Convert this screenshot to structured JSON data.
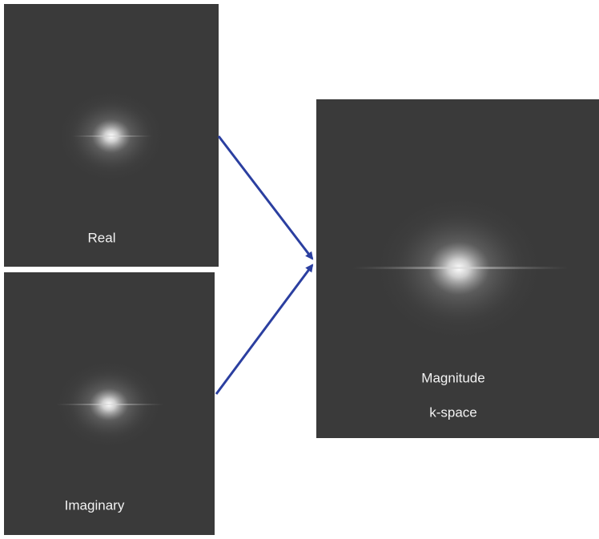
{
  "panels": [
    {
      "label": "Real"
    },
    {
      "label": "Imaginary"
    },
    {
      "label": "Magnitude",
      "sublabel": "k-space"
    }
  ]
}
